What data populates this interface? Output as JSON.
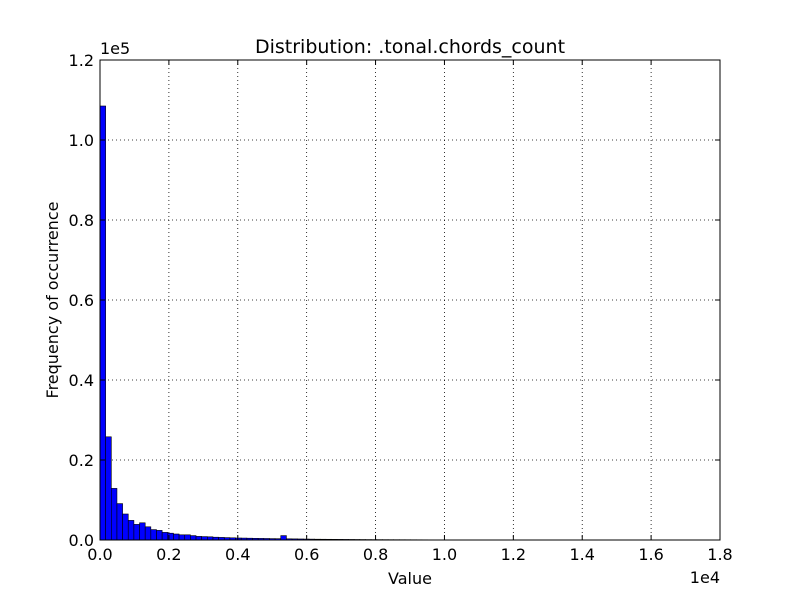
{
  "chart_data": {
    "type": "bar",
    "title": "Distribution: .tonal.chords_count",
    "xlabel": "Value",
    "ylabel": "Frequency of occurrence",
    "x_offset_text": "1e4",
    "y_offset_text": "1e5",
    "xlim": [
      0,
      18000
    ],
    "ylim": [
      0,
      120000
    ],
    "x_ticks": [
      0,
      2000,
      4000,
      6000,
      8000,
      10000,
      12000,
      14000,
      16000,
      18000
    ],
    "x_tick_labels": [
      "0.0",
      "0.2",
      "0.4",
      "0.6",
      "0.8",
      "1.0",
      "1.2",
      "1.4",
      "1.6",
      "1.8"
    ],
    "y_ticks": [
      0,
      20000,
      40000,
      60000,
      80000,
      100000,
      120000
    ],
    "y_tick_labels": [
      "0.0",
      "0.2",
      "0.4",
      "0.6",
      "0.8",
      "1.0",
      "1.2"
    ],
    "grid": true,
    "bar_color": "#0000ff",
    "bin_width": 164,
    "bin_start": 0,
    "values": [
      108500,
      25800,
      12900,
      9100,
      6500,
      4900,
      3900,
      4300,
      3300,
      2600,
      2400,
      1900,
      1700,
      1500,
      1300,
      1300,
      1100,
      900,
      850,
      800,
      700,
      650,
      600,
      550,
      500,
      480,
      450,
      420,
      400,
      380,
      350,
      330,
      1100,
      300,
      280,
      260,
      240,
      220,
      200,
      190,
      180,
      170,
      160,
      150,
      140,
      130,
      120,
      110,
      100,
      95,
      90,
      85,
      80,
      75,
      70,
      65,
      60,
      55,
      50,
      48,
      46,
      44,
      42,
      40,
      38,
      36,
      34,
      32,
      30,
      28,
      26,
      24,
      22,
      20,
      19,
      18,
      17,
      16,
      15,
      14,
      13,
      12,
      11,
      10,
      9,
      8,
      8,
      7,
      7,
      6,
      6,
      5,
      5,
      4,
      4,
      3,
      3,
      2,
      2,
      2
    ]
  }
}
